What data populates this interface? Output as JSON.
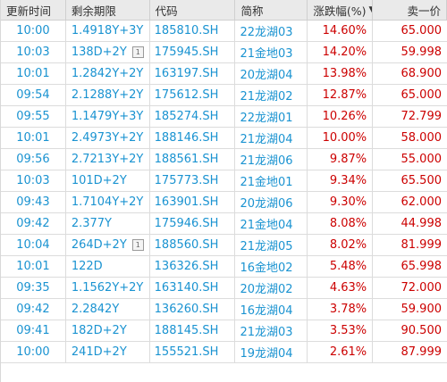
{
  "headers": {
    "time": "更新时间",
    "term": "剩余期限",
    "code": "代码",
    "short": "简称",
    "change": "涨跌幅(%)",
    "ask": "卖一价"
  },
  "icons": {
    "sort": "sort-descending-icon",
    "badge": "option-badge-icon"
  },
  "badge_text": "1",
  "rows": [
    {
      "time": "10:00",
      "term": "1.4918Y+3Y",
      "code": "185810.SH",
      "short": "22龙湖03",
      "change": "14.60%",
      "ask": "65.000",
      "badge": false
    },
    {
      "time": "10:03",
      "term": "138D+2Y",
      "code": "175945.SH",
      "short": "21金地03",
      "change": "14.20%",
      "ask": "59.998",
      "badge": true
    },
    {
      "time": "10:01",
      "term": "1.2842Y+2Y",
      "code": "163197.SH",
      "short": "20龙湖04",
      "change": "13.98%",
      "ask": "68.900",
      "badge": false
    },
    {
      "time": "09:54",
      "term": "2.1288Y+2Y",
      "code": "175612.SH",
      "short": "21龙湖02",
      "change": "12.87%",
      "ask": "65.000",
      "badge": false
    },
    {
      "time": "09:55",
      "term": "1.1479Y+3Y",
      "code": "185274.SH",
      "short": "22龙湖01",
      "change": "10.26%",
      "ask": "72.799",
      "badge": false
    },
    {
      "time": "10:01",
      "term": "2.4973Y+2Y",
      "code": "188146.SH",
      "short": "21龙湖04",
      "change": "10.00%",
      "ask": "58.000",
      "badge": false
    },
    {
      "time": "09:56",
      "term": "2.7213Y+2Y",
      "code": "188561.SH",
      "short": "21龙湖06",
      "change": "9.87%",
      "ask": "55.000",
      "badge": false
    },
    {
      "time": "10:03",
      "term": "101D+2Y",
      "code": "175773.SH",
      "short": "21金地01",
      "change": "9.34%",
      "ask": "65.500",
      "badge": false
    },
    {
      "time": "09:43",
      "term": "1.7104Y+2Y",
      "code": "163901.SH",
      "short": "20龙湖06",
      "change": "9.30%",
      "ask": "62.000",
      "badge": false
    },
    {
      "time": "09:42",
      "term": "2.377Y",
      "code": "175946.SH",
      "short": "21金地04",
      "change": "8.08%",
      "ask": "44.998",
      "badge": false
    },
    {
      "time": "10:04",
      "term": "264D+2Y",
      "code": "188560.SH",
      "short": "21龙湖05",
      "change": "8.02%",
      "ask": "81.999",
      "badge": true
    },
    {
      "time": "10:01",
      "term": "122D",
      "code": "136326.SH",
      "short": "16金地02",
      "change": "5.48%",
      "ask": "65.998",
      "badge": false
    },
    {
      "time": "09:35",
      "term": "1.1562Y+2Y",
      "code": "163140.SH",
      "short": "20龙湖02",
      "change": "4.63%",
      "ask": "72.000",
      "badge": false
    },
    {
      "time": "09:42",
      "term": "2.2842Y",
      "code": "136260.SH",
      "short": "16龙湖04",
      "change": "3.78%",
      "ask": "59.900",
      "badge": false
    },
    {
      "time": "09:41",
      "term": "182D+2Y",
      "code": "188145.SH",
      "short": "21龙湖03",
      "change": "3.53%",
      "ask": "90.500",
      "badge": false
    },
    {
      "time": "10:00",
      "term": "241D+2Y",
      "code": "155521.SH",
      "short": "19龙湖04",
      "change": "2.61%",
      "ask": "87.999",
      "badge": false
    }
  ]
}
